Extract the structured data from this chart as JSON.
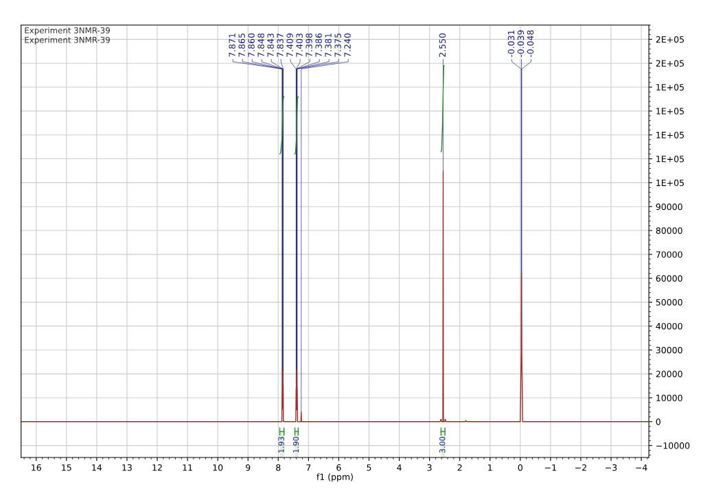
{
  "chart_data": {
    "type": "line",
    "xlabel": "f1 (ppm)",
    "xlim": [
      16.5,
      -4.25
    ],
    "xticks": [
      {
        "value": 16,
        "label": "16"
      },
      {
        "value": 15,
        "label": "15"
      },
      {
        "value": 14,
        "label": "14"
      },
      {
        "value": 13,
        "label": "13"
      },
      {
        "value": 12,
        "label": "12"
      },
      {
        "value": 11,
        "label": "11"
      },
      {
        "value": 10,
        "label": "10"
      },
      {
        "value": 9,
        "label": "9"
      },
      {
        "value": 8,
        "label": "8"
      },
      {
        "value": 7,
        "label": "7"
      },
      {
        "value": 6,
        "label": "6"
      },
      {
        "value": 5,
        "label": "5"
      },
      {
        "value": 4,
        "label": "4"
      },
      {
        "value": 3,
        "label": "3"
      },
      {
        "value": 2,
        "label": "2"
      },
      {
        "value": 1,
        "label": "1"
      },
      {
        "value": 0,
        "label": "0"
      },
      {
        "value": -1,
        "label": "−1"
      },
      {
        "value": -2,
        "label": "−2"
      },
      {
        "value": -3,
        "label": "−3"
      },
      {
        "value": -4,
        "label": "−4"
      }
    ],
    "ylim": [
      -15000,
      166000
    ],
    "yticks": [
      {
        "value": -10000,
        "label": "−10000"
      },
      0,
      10000,
      20000,
      30000,
      40000,
      50000,
      60000,
      70000,
      80000,
      90000,
      {
        "value": 100000,
        "label": "1E+05"
      },
      {
        "value": 110000,
        "label": "1E+05"
      },
      {
        "value": 120000,
        "label": "1E+05"
      },
      {
        "value": 130000,
        "label": "1E+05"
      },
      {
        "value": 140000,
        "label": "1E+05"
      },
      {
        "value": 150000,
        "label": "2E+05"
      },
      {
        "value": 160000,
        "label": "2E+05"
      }
    ],
    "grid": true,
    "legend": false,
    "line_style": "solid",
    "marker": "none",
    "series": [
      {
        "color": "#a52a2a",
        "x": [
          16.5,
          7.95,
          7.88,
          7.871,
          7.868,
          7.865,
          7.86,
          7.848,
          7.843,
          7.837,
          7.83,
          7.42,
          7.409,
          7.403,
          7.398,
          7.392,
          7.386,
          7.381,
          7.375,
          7.36,
          7.25,
          7.24,
          7.23,
          2.65,
          2.62,
          2.6,
          2.56,
          2.55,
          2.54,
          2.5,
          2.48,
          2.46,
          1.82,
          1.8,
          1.78,
          0.0,
          -0.031,
          -0.039,
          -0.048,
          -0.08,
          -4.25
        ],
        "values": [
          0,
          0,
          0,
          15000,
          5000,
          22000,
          8000,
          21000,
          6000,
          15000,
          0,
          0,
          14000,
          6000,
          22000,
          5000,
          21000,
          6000,
          14000,
          0,
          0,
          4000,
          0,
          0,
          1000,
          0,
          0,
          105000,
          0,
          0,
          1000,
          0,
          0,
          500,
          0,
          0,
          30000,
          62000,
          30000,
          0,
          0
        ]
      },
      {
        "color": "#2e8b2e",
        "x": [
          7.95,
          7.92,
          7.88,
          7.85,
          7.83,
          7.81
        ],
        "values": [
          112000,
          112500,
          118000,
          130000,
          135500,
          136000
        ]
      },
      {
        "color": "#2e8b2e",
        "x": [
          7.45,
          7.43,
          7.4,
          7.38,
          7.36,
          7.34
        ],
        "values": [
          112000,
          112500,
          118000,
          130000,
          135500,
          136000
        ]
      },
      {
        "color": "#2e8b2e",
        "x": [
          2.62,
          2.6,
          2.57,
          2.55,
          2.53,
          2.51
        ],
        "values": [
          113000,
          113500,
          125000,
          138000,
          148500,
          149000
        ]
      }
    ],
    "annotations": [
      "Experiment 3NMR-39",
      "Experiment 3NMR-39",
      {
        "text": "7.871",
        "x": 7.871,
        "y": 15000
      },
      {
        "text": "7.865",
        "x": 7.865,
        "y": 22000
      },
      {
        "text": "7.860",
        "x": 7.86,
        "y": 8000
      },
      {
        "text": "7.848",
        "x": 7.848,
        "y": 21000
      },
      {
        "text": "7.843",
        "x": 7.843,
        "y": 6000
      },
      {
        "text": "7.837",
        "x": 7.837,
        "y": 15000
      },
      {
        "text": "7.409",
        "x": 7.409,
        "y": 14000
      },
      {
        "text": "7.403",
        "x": 7.403,
        "y": 6000
      },
      {
        "text": "7.398",
        "x": 7.398,
        "y": 22000
      },
      {
        "text": "7.386",
        "x": 7.386,
        "y": 21000
      },
      {
        "text": "7.381",
        "x": 7.381,
        "y": 6000
      },
      {
        "text": "7.375",
        "x": 7.375,
        "y": 14000
      },
      {
        "text": "7.240",
        "x": 7.24,
        "y": 4000
      },
      {
        "text": "2.550",
        "x": 2.55,
        "y": 105000
      },
      {
        "text": "-0.031",
        "x": -0.031,
        "y": 30000
      },
      {
        "text": "-0.039",
        "x": -0.039,
        "y": 62000
      },
      {
        "text": "-0.048",
        "x": -0.048,
        "y": 30000
      }
    ],
    "bands": [
      {
        "axis": "x",
        "from": 7.95,
        "to": 7.81,
        "label": "1.93",
        "color": "#2e8b2e"
      },
      {
        "axis": "x",
        "from": 7.45,
        "to": 7.34,
        "label": "1.90",
        "color": "#2e8b2e"
      },
      {
        "axis": "x",
        "from": 2.62,
        "to": 2.49,
        "label": "3.00",
        "color": "#2e8b2e"
      }
    ]
  }
}
